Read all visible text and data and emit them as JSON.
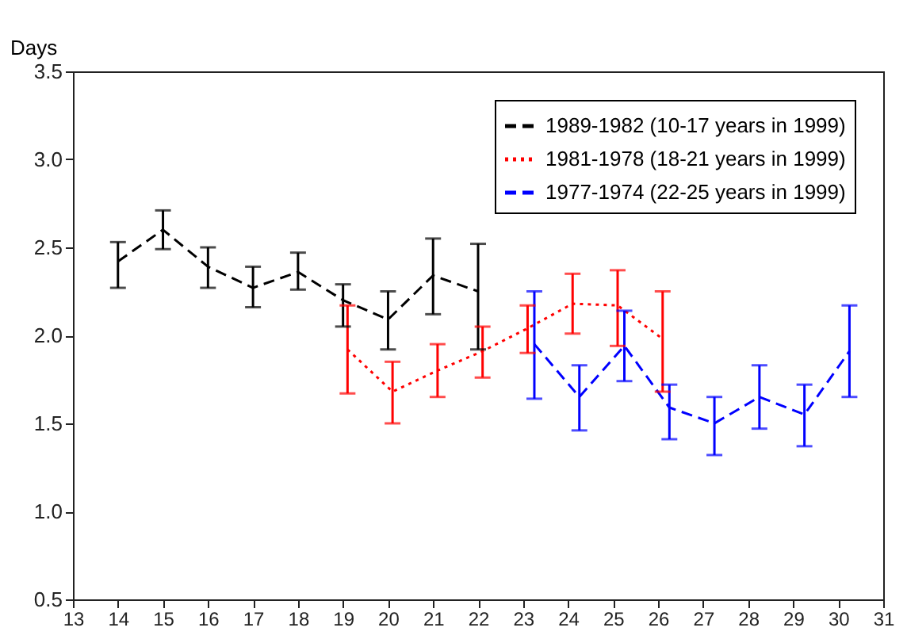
{
  "chart_data": {
    "type": "line",
    "ylabel": "Days",
    "xlim": [
      13,
      31
    ],
    "xticks": [
      13,
      14,
      15,
      16,
      17,
      18,
      19,
      20,
      21,
      22,
      23,
      24,
      25,
      26,
      27,
      28,
      29,
      30,
      31
    ],
    "ylim": [
      0.5,
      3.5
    ],
    "yticks": [
      {
        "value": 0.5,
        "label": "0.5"
      },
      {
        "value": 1,
        "label": "1.0"
      },
      {
        "value": 1.5,
        "label": "1.5"
      },
      {
        "value": 2,
        "label": "2.0"
      },
      {
        "value": 2.5,
        "label": "2.5"
      },
      {
        "value": 3,
        "label": "3.0"
      },
      {
        "value": 3.5,
        "label": "3.5"
      }
    ],
    "grid": false,
    "legend": "top right",
    "marker": "none",
    "series": [
      {
        "name": "1989-1982 (10-17 years in 1999)",
        "color": "#000000",
        "line_style": "dashed",
        "x": [
          14,
          15,
          16,
          17,
          18,
          19,
          20,
          21,
          22
        ],
        "values": [
          2.42,
          2.6,
          2.39,
          2.27,
          2.36,
          2.2,
          2.09,
          2.34,
          2.25
        ],
        "errors": [
          [
            2.27,
            2.53
          ],
          [
            2.49,
            2.71
          ],
          [
            2.27,
            2.5
          ],
          [
            2.16,
            2.39
          ],
          [
            2.26,
            2.47
          ],
          [
            2.05,
            2.29
          ],
          [
            1.92,
            2.25
          ],
          [
            2.12,
            2.55
          ],
          [
            1.92,
            2.52
          ]
        ]
      },
      {
        "name": "1981-1978 (18-21 years in 1999)",
        "color": "#ff0000",
        "line_style": "dotted",
        "x": [
          19.1,
          20.1,
          21.1,
          22.1,
          23.1,
          24.1,
          25.1,
          26.1
        ],
        "values": [
          1.92,
          1.68,
          1.8,
          1.91,
          2.04,
          2.18,
          2.17,
          1.98
        ],
        "errors": [
          [
            1.67,
            2.17
          ],
          [
            1.5,
            1.85
          ],
          [
            1.65,
            1.95
          ],
          [
            1.76,
            2.05
          ],
          [
            1.9,
            2.17
          ],
          [
            2.01,
            2.35
          ],
          [
            1.94,
            2.37
          ],
          [
            1.68,
            2.25
          ]
        ]
      },
      {
        "name": "1977-1974 (22-25 years in 1999)",
        "color": "#0000ff",
        "line_style": "dashed",
        "x": [
          23.25,
          24.25,
          25.25,
          26.25,
          27.25,
          28.25,
          29.25,
          30.25
        ],
        "values": [
          1.95,
          1.65,
          1.94,
          1.59,
          1.5,
          1.65,
          1.55,
          1.91
        ],
        "errors": [
          [
            1.64,
            2.25
          ],
          [
            1.46,
            1.83
          ],
          [
            1.74,
            2.14
          ],
          [
            1.41,
            1.72
          ],
          [
            1.32,
            1.65
          ],
          [
            1.47,
            1.83
          ],
          [
            1.37,
            1.72
          ],
          [
            1.65,
            2.17
          ]
        ]
      }
    ]
  }
}
